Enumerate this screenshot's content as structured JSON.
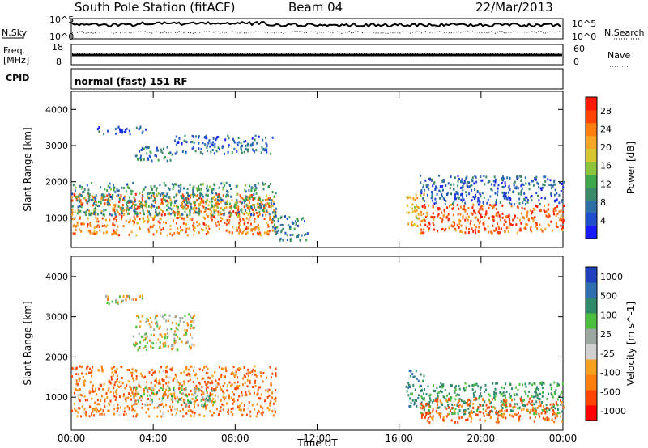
{
  "header": {
    "station": "South Pole Station (fitACF)",
    "beam": "Beam 04",
    "date": "22/Mar/2013"
  },
  "strips": {
    "nsky_label": "N.Sky",
    "nsearch_label": "N.Search",
    "freq_label_top": "Freq.",
    "freq_label_bottom": "[MHz]",
    "nave_label": "Nave",
    "cpid_label": "CPID",
    "cpid_text": "normal (fast) 151 RF",
    "noise_ticks_left": [
      "10^5",
      "10^0"
    ],
    "noise_ticks_right": [
      "10^5",
      "10^0"
    ],
    "freq_ticks": [
      "18",
      "8"
    ],
    "nave_ticks": [
      "60",
      "0"
    ]
  },
  "chart_data": [
    {
      "type": "heatmap",
      "panel": "power",
      "ylabel": "Slant Range [km]",
      "ylim": [
        180,
        4500
      ],
      "y_ticks": [
        1000,
        2000,
        3000,
        4000
      ],
      "xlim_hours": [
        0,
        24
      ],
      "colorbar": {
        "label": "Power [dB]",
        "ticks": [
          4,
          8,
          12,
          16,
          20,
          24,
          28
        ],
        "range": [
          0,
          31
        ],
        "colors": [
          "#1a1aff",
          "#1f4fcc",
          "#2e6fa8",
          "#3b8a6a",
          "#3fa84a",
          "#8cc43c",
          "#d6c72e",
          "#f5a623",
          "#ff7f0e",
          "#ff4500",
          "#ff1a00"
        ]
      },
      "regions": [
        {
          "t0": 0.0,
          "t1": 10.0,
          "r0": 550,
          "r1": 1700,
          "value": 24
        },
        {
          "t0": 0.0,
          "t1": 10.0,
          "r0": 1100,
          "r1": 2000,
          "value": 10
        },
        {
          "t0": 1.2,
          "t1": 3.6,
          "r0": 3350,
          "r1": 3550,
          "value": 4
        },
        {
          "t0": 3.0,
          "t1": 5.0,
          "r0": 2600,
          "r1": 3000,
          "value": 8
        },
        {
          "t0": 5.0,
          "t1": 9.8,
          "r0": 2800,
          "r1": 3300,
          "value": 6
        },
        {
          "t0": 9.8,
          "t1": 11.5,
          "r0": 400,
          "r1": 1100,
          "value": 8
        },
        {
          "t0": 16.3,
          "t1": 17.2,
          "r0": 800,
          "r1": 1700,
          "value": 20
        },
        {
          "t0": 17.0,
          "t1": 24.0,
          "r0": 600,
          "r1": 1400,
          "value": 26
        },
        {
          "t0": 17.0,
          "t1": 24.0,
          "r0": 1400,
          "r1": 2200,
          "value": 6
        }
      ]
    },
    {
      "type": "heatmap",
      "panel": "velocity",
      "ylabel": "Slant Range [km]",
      "xlabel": "Time UT",
      "ylim": [
        180,
        4500
      ],
      "y_ticks": [
        1000,
        2000,
        3000,
        4000
      ],
      "x_ticks": [
        "00:00",
        "04:00",
        "08:00",
        "12:00",
        "16:00",
        "20:00",
        "00:00"
      ],
      "xlim_hours": [
        0,
        24
      ],
      "colorbar": {
        "label": "Velocity [m s^-1]",
        "ticks": [
          "1000",
          "500",
          "100",
          "25",
          "-25",
          "-100",
          "-500",
          "-1000"
        ],
        "colors": [
          "#2040c0",
          "#2f6fb0",
          "#2f8a6a",
          "#4cbf3f",
          "#9aa8a0",
          "#d0d0d0",
          "#f7a21e",
          "#ff7f0e",
          "#ff4400",
          "#ff0000"
        ]
      },
      "regions": [
        {
          "t0": 0.0,
          "t1": 10.0,
          "r0": 550,
          "r1": 1800,
          "value": -200
        },
        {
          "t0": 3.0,
          "t1": 7.0,
          "r0": 800,
          "r1": 1300,
          "value": 120
        },
        {
          "t0": 1.2,
          "t1": 3.6,
          "r0": 3350,
          "r1": 3550,
          "value": 10
        },
        {
          "t0": 3.0,
          "t1": 6.0,
          "r0": 2200,
          "r1": 3100,
          "value": 5
        },
        {
          "t0": 16.3,
          "t1": 17.2,
          "r0": 800,
          "r1": 1700,
          "value": 400
        },
        {
          "t0": 17.0,
          "t1": 24.0,
          "r0": 600,
          "r1": 1400,
          "value": 300
        },
        {
          "t0": 17.0,
          "t1": 24.0,
          "r0": 400,
          "r1": 1000,
          "value": -250
        }
      ]
    }
  ]
}
